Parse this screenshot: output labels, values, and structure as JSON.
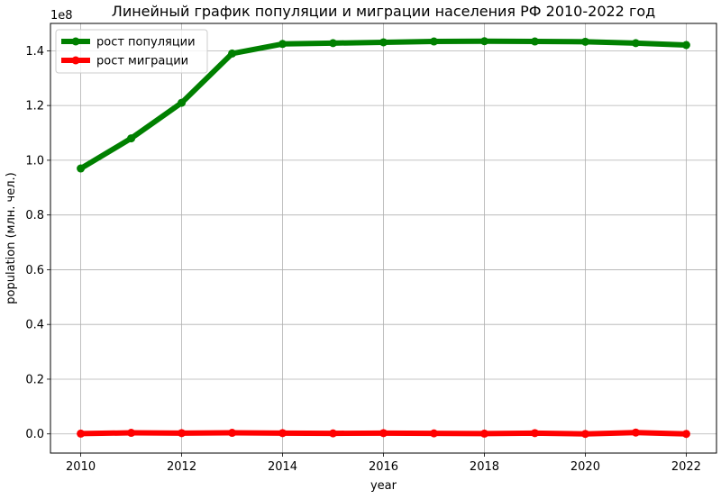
{
  "chart_data": {
    "type": "line",
    "title": "Линейный график популяции и миграции населения РФ 2010-2022 год",
    "xlabel": "year",
    "ylabel": "population (млн. чел.)",
    "y_offset_label": "1e8",
    "x": [
      2010,
      2011,
      2012,
      2013,
      2014,
      2015,
      2016,
      2017,
      2018,
      2019,
      2020,
      2021,
      2022
    ],
    "x_ticks": [
      2010,
      2012,
      2014,
      2016,
      2018,
      2020,
      2022
    ],
    "y_ticks": [
      0.0,
      0.2,
      0.4,
      0.6,
      0.8,
      1.0,
      1.2,
      1.4
    ],
    "y_tick_labels": [
      "0.0",
      "0.2",
      "0.4",
      "0.6",
      "0.8",
      "1.0",
      "1.2",
      "1.4"
    ],
    "xlim": [
      2009.4,
      2022.6
    ],
    "ylim": [
      -0.07,
      1.5
    ],
    "grid": true,
    "legend_position": "top-left",
    "series": [
      {
        "name": "рост популяции",
        "color": "#008000",
        "values": [
          0.97,
          1.08,
          1.21,
          1.39,
          1.425,
          1.428,
          1.431,
          1.434,
          1.435,
          1.434,
          1.433,
          1.428,
          1.421
        ]
      },
      {
        "name": "рост миграции",
        "color": "#ff0000",
        "values": [
          0.001,
          0.004,
          0.003,
          0.004,
          0.003,
          0.002,
          0.003,
          0.002,
          0.001,
          0.003,
          0.0,
          0.005,
          0.0
        ]
      }
    ]
  }
}
